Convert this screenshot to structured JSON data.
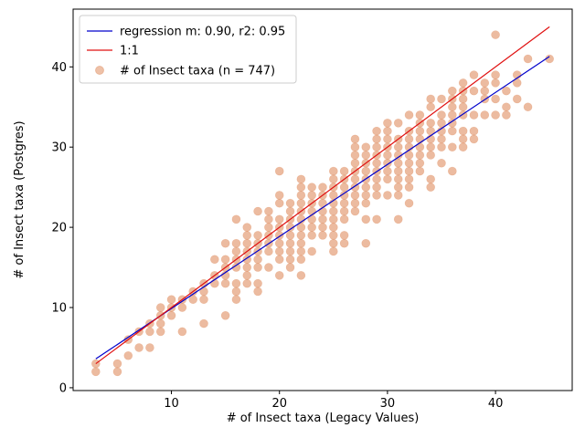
{
  "chart_data": {
    "type": "scatter",
    "xlabel": "# of Insect taxa (Legacy Values)",
    "ylabel": "# of Insect taxa (Postgres)",
    "xlim": [
      0.9,
      47.1
    ],
    "ylim": [
      -0.35,
      47.2
    ],
    "xticks": [
      10,
      20,
      30,
      40
    ],
    "yticks": [
      0,
      10,
      20,
      30,
      40
    ],
    "grid": false,
    "legend_position": "top-left",
    "series": [
      {
        "name": "regression m: 0.90, r2: 0.95",
        "kind": "line",
        "color": "#0000cc",
        "x": [
          3,
          45
        ],
        "y": [
          3.6,
          41.3
        ]
      },
      {
        "name": "1:1",
        "kind": "line",
        "color": "#e01010",
        "x": [
          3,
          45
        ],
        "y": [
          3,
          45
        ]
      },
      {
        "name": "# of Insect taxa (n = 747)",
        "kind": "scatter",
        "color": "#dd8452",
        "points": [
          [
            3,
            2
          ],
          [
            3,
            3
          ],
          [
            5,
            2
          ],
          [
            5,
            3
          ],
          [
            6,
            4
          ],
          [
            6,
            6
          ],
          [
            7,
            5
          ],
          [
            7,
            7
          ],
          [
            8,
            5
          ],
          [
            8,
            7
          ],
          [
            8,
            8
          ],
          [
            9,
            7
          ],
          [
            9,
            8
          ],
          [
            9,
            9
          ],
          [
            9,
            10
          ],
          [
            10,
            9
          ],
          [
            10,
            10
          ],
          [
            10,
            11
          ],
          [
            11,
            7
          ],
          [
            11,
            10
          ],
          [
            11,
            11
          ],
          [
            12,
            11
          ],
          [
            12,
            12
          ],
          [
            13,
            8
          ],
          [
            13,
            11
          ],
          [
            13,
            12
          ],
          [
            13,
            13
          ],
          [
            14,
            13
          ],
          [
            14,
            14
          ],
          [
            14,
            16
          ],
          [
            15,
            9
          ],
          [
            15,
            13
          ],
          [
            15,
            14
          ],
          [
            15,
            15
          ],
          [
            15,
            16
          ],
          [
            15,
            18
          ],
          [
            16,
            11
          ],
          [
            16,
            12
          ],
          [
            16,
            13
          ],
          [
            16,
            15
          ],
          [
            16,
            16
          ],
          [
            16,
            17
          ],
          [
            16,
            18
          ],
          [
            16,
            21
          ],
          [
            17,
            13
          ],
          [
            17,
            14
          ],
          [
            17,
            15
          ],
          [
            17,
            16
          ],
          [
            17,
            17
          ],
          [
            17,
            18
          ],
          [
            17,
            19
          ],
          [
            17,
            20
          ],
          [
            18,
            12
          ],
          [
            18,
            13
          ],
          [
            18,
            15
          ],
          [
            18,
            16
          ],
          [
            18,
            17
          ],
          [
            18,
            18
          ],
          [
            18,
            19
          ],
          [
            18,
            22
          ],
          [
            19,
            15
          ],
          [
            19,
            17
          ],
          [
            19,
            18
          ],
          [
            19,
            19
          ],
          [
            19,
            20
          ],
          [
            19,
            21
          ],
          [
            19,
            22
          ],
          [
            20,
            14
          ],
          [
            20,
            16
          ],
          [
            20,
            17
          ],
          [
            20,
            18
          ],
          [
            20,
            19
          ],
          [
            20,
            20
          ],
          [
            20,
            21
          ],
          [
            20,
            23
          ],
          [
            20,
            24
          ],
          [
            20,
            27
          ],
          [
            21,
            15
          ],
          [
            21,
            16
          ],
          [
            21,
            17
          ],
          [
            21,
            18
          ],
          [
            21,
            19
          ],
          [
            21,
            20
          ],
          [
            21,
            21
          ],
          [
            21,
            22
          ],
          [
            21,
            23
          ],
          [
            22,
            14
          ],
          [
            22,
            16
          ],
          [
            22,
            17
          ],
          [
            22,
            18
          ],
          [
            22,
            19
          ],
          [
            22,
            20
          ],
          [
            22,
            21
          ],
          [
            22,
            22
          ],
          [
            22,
            23
          ],
          [
            22,
            24
          ],
          [
            22,
            25
          ],
          [
            22,
            26
          ],
          [
            23,
            17
          ],
          [
            23,
            19
          ],
          [
            23,
            20
          ],
          [
            23,
            21
          ],
          [
            23,
            22
          ],
          [
            23,
            23
          ],
          [
            23,
            24
          ],
          [
            23,
            25
          ],
          [
            24,
            19
          ],
          [
            24,
            20
          ],
          [
            24,
            21
          ],
          [
            24,
            22
          ],
          [
            24,
            23
          ],
          [
            24,
            24
          ],
          [
            24,
            25
          ],
          [
            25,
            17
          ],
          [
            25,
            18
          ],
          [
            25,
            19
          ],
          [
            25,
            20
          ],
          [
            25,
            21
          ],
          [
            25,
            22
          ],
          [
            25,
            23
          ],
          [
            25,
            24
          ],
          [
            25,
            25
          ],
          [
            25,
            26
          ],
          [
            25,
            27
          ],
          [
            26,
            18
          ],
          [
            26,
            19
          ],
          [
            26,
            21
          ],
          [
            26,
            22
          ],
          [
            26,
            23
          ],
          [
            26,
            24
          ],
          [
            26,
            25
          ],
          [
            26,
            26
          ],
          [
            26,
            27
          ],
          [
            27,
            22
          ],
          [
            27,
            23
          ],
          [
            27,
            24
          ],
          [
            27,
            25
          ],
          [
            27,
            26
          ],
          [
            27,
            27
          ],
          [
            27,
            28
          ],
          [
            27,
            29
          ],
          [
            27,
            30
          ],
          [
            27,
            31
          ],
          [
            28,
            18
          ],
          [
            28,
            21
          ],
          [
            28,
            23
          ],
          [
            28,
            24
          ],
          [
            28,
            25
          ],
          [
            28,
            26
          ],
          [
            28,
            27
          ],
          [
            28,
            28
          ],
          [
            28,
            29
          ],
          [
            28,
            30
          ],
          [
            29,
            21
          ],
          [
            29,
            24
          ],
          [
            29,
            25
          ],
          [
            29,
            26
          ],
          [
            29,
            27
          ],
          [
            29,
            28
          ],
          [
            29,
            29
          ],
          [
            29,
            30
          ],
          [
            29,
            31
          ],
          [
            29,
            32
          ],
          [
            30,
            24
          ],
          [
            30,
            26
          ],
          [
            30,
            27
          ],
          [
            30,
            28
          ],
          [
            30,
            29
          ],
          [
            30,
            30
          ],
          [
            30,
            31
          ],
          [
            30,
            32
          ],
          [
            30,
            33
          ],
          [
            31,
            21
          ],
          [
            31,
            24
          ],
          [
            31,
            25
          ],
          [
            31,
            26
          ],
          [
            31,
            27
          ],
          [
            31,
            28
          ],
          [
            31,
            29
          ],
          [
            31,
            30
          ],
          [
            31,
            31
          ],
          [
            31,
            33
          ],
          [
            32,
            23
          ],
          [
            32,
            25
          ],
          [
            32,
            26
          ],
          [
            32,
            27
          ],
          [
            32,
            28
          ],
          [
            32,
            29
          ],
          [
            32,
            30
          ],
          [
            32,
            31
          ],
          [
            32,
            32
          ],
          [
            32,
            34
          ],
          [
            33,
            27
          ],
          [
            33,
            28
          ],
          [
            33,
            29
          ],
          [
            33,
            30
          ],
          [
            33,
            31
          ],
          [
            33,
            32
          ],
          [
            33,
            33
          ],
          [
            33,
            34
          ],
          [
            34,
            25
          ],
          [
            34,
            26
          ],
          [
            34,
            29
          ],
          [
            34,
            30
          ],
          [
            34,
            31
          ],
          [
            34,
            32
          ],
          [
            34,
            33
          ],
          [
            34,
            35
          ],
          [
            34,
            36
          ],
          [
            35,
            28
          ],
          [
            35,
            30
          ],
          [
            35,
            31
          ],
          [
            35,
            32
          ],
          [
            35,
            33
          ],
          [
            35,
            34
          ],
          [
            35,
            36
          ],
          [
            36,
            27
          ],
          [
            36,
            30
          ],
          [
            36,
            32
          ],
          [
            36,
            33
          ],
          [
            36,
            34
          ],
          [
            36,
            35
          ],
          [
            36,
            36
          ],
          [
            36,
            37
          ],
          [
            37,
            30
          ],
          [
            37,
            31
          ],
          [
            37,
            32
          ],
          [
            37,
            34
          ],
          [
            37,
            35
          ],
          [
            37,
            36
          ],
          [
            37,
            37
          ],
          [
            37,
            38
          ],
          [
            38,
            31
          ],
          [
            38,
            32
          ],
          [
            38,
            34
          ],
          [
            38,
            37
          ],
          [
            38,
            39
          ],
          [
            39,
            34
          ],
          [
            39,
            36
          ],
          [
            39,
            37
          ],
          [
            39,
            38
          ],
          [
            40,
            34
          ],
          [
            40,
            36
          ],
          [
            40,
            38
          ],
          [
            40,
            39
          ],
          [
            40,
            44
          ],
          [
            41,
            34
          ],
          [
            41,
            35
          ],
          [
            41,
            37
          ],
          [
            42,
            36
          ],
          [
            42,
            38
          ],
          [
            42,
            39
          ],
          [
            43,
            35
          ],
          [
            43,
            41
          ],
          [
            45,
            41
          ]
        ]
      }
    ]
  }
}
